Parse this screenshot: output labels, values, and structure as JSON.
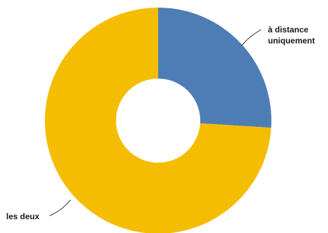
{
  "chart_data": {
    "type": "pie",
    "variant": "donut",
    "slices": [
      {
        "label_lines": [
          "à distance",
          "uniquement"
        ],
        "value": 26,
        "color": "#4e7db6"
      },
      {
        "label_lines": [
          "les deux"
        ],
        "value": 74,
        "color": "#f5bd02"
      }
    ],
    "start_angle_deg": 0,
    "direction": "clockwise",
    "legend": "none",
    "labels": "outside-with-leader-lines"
  }
}
